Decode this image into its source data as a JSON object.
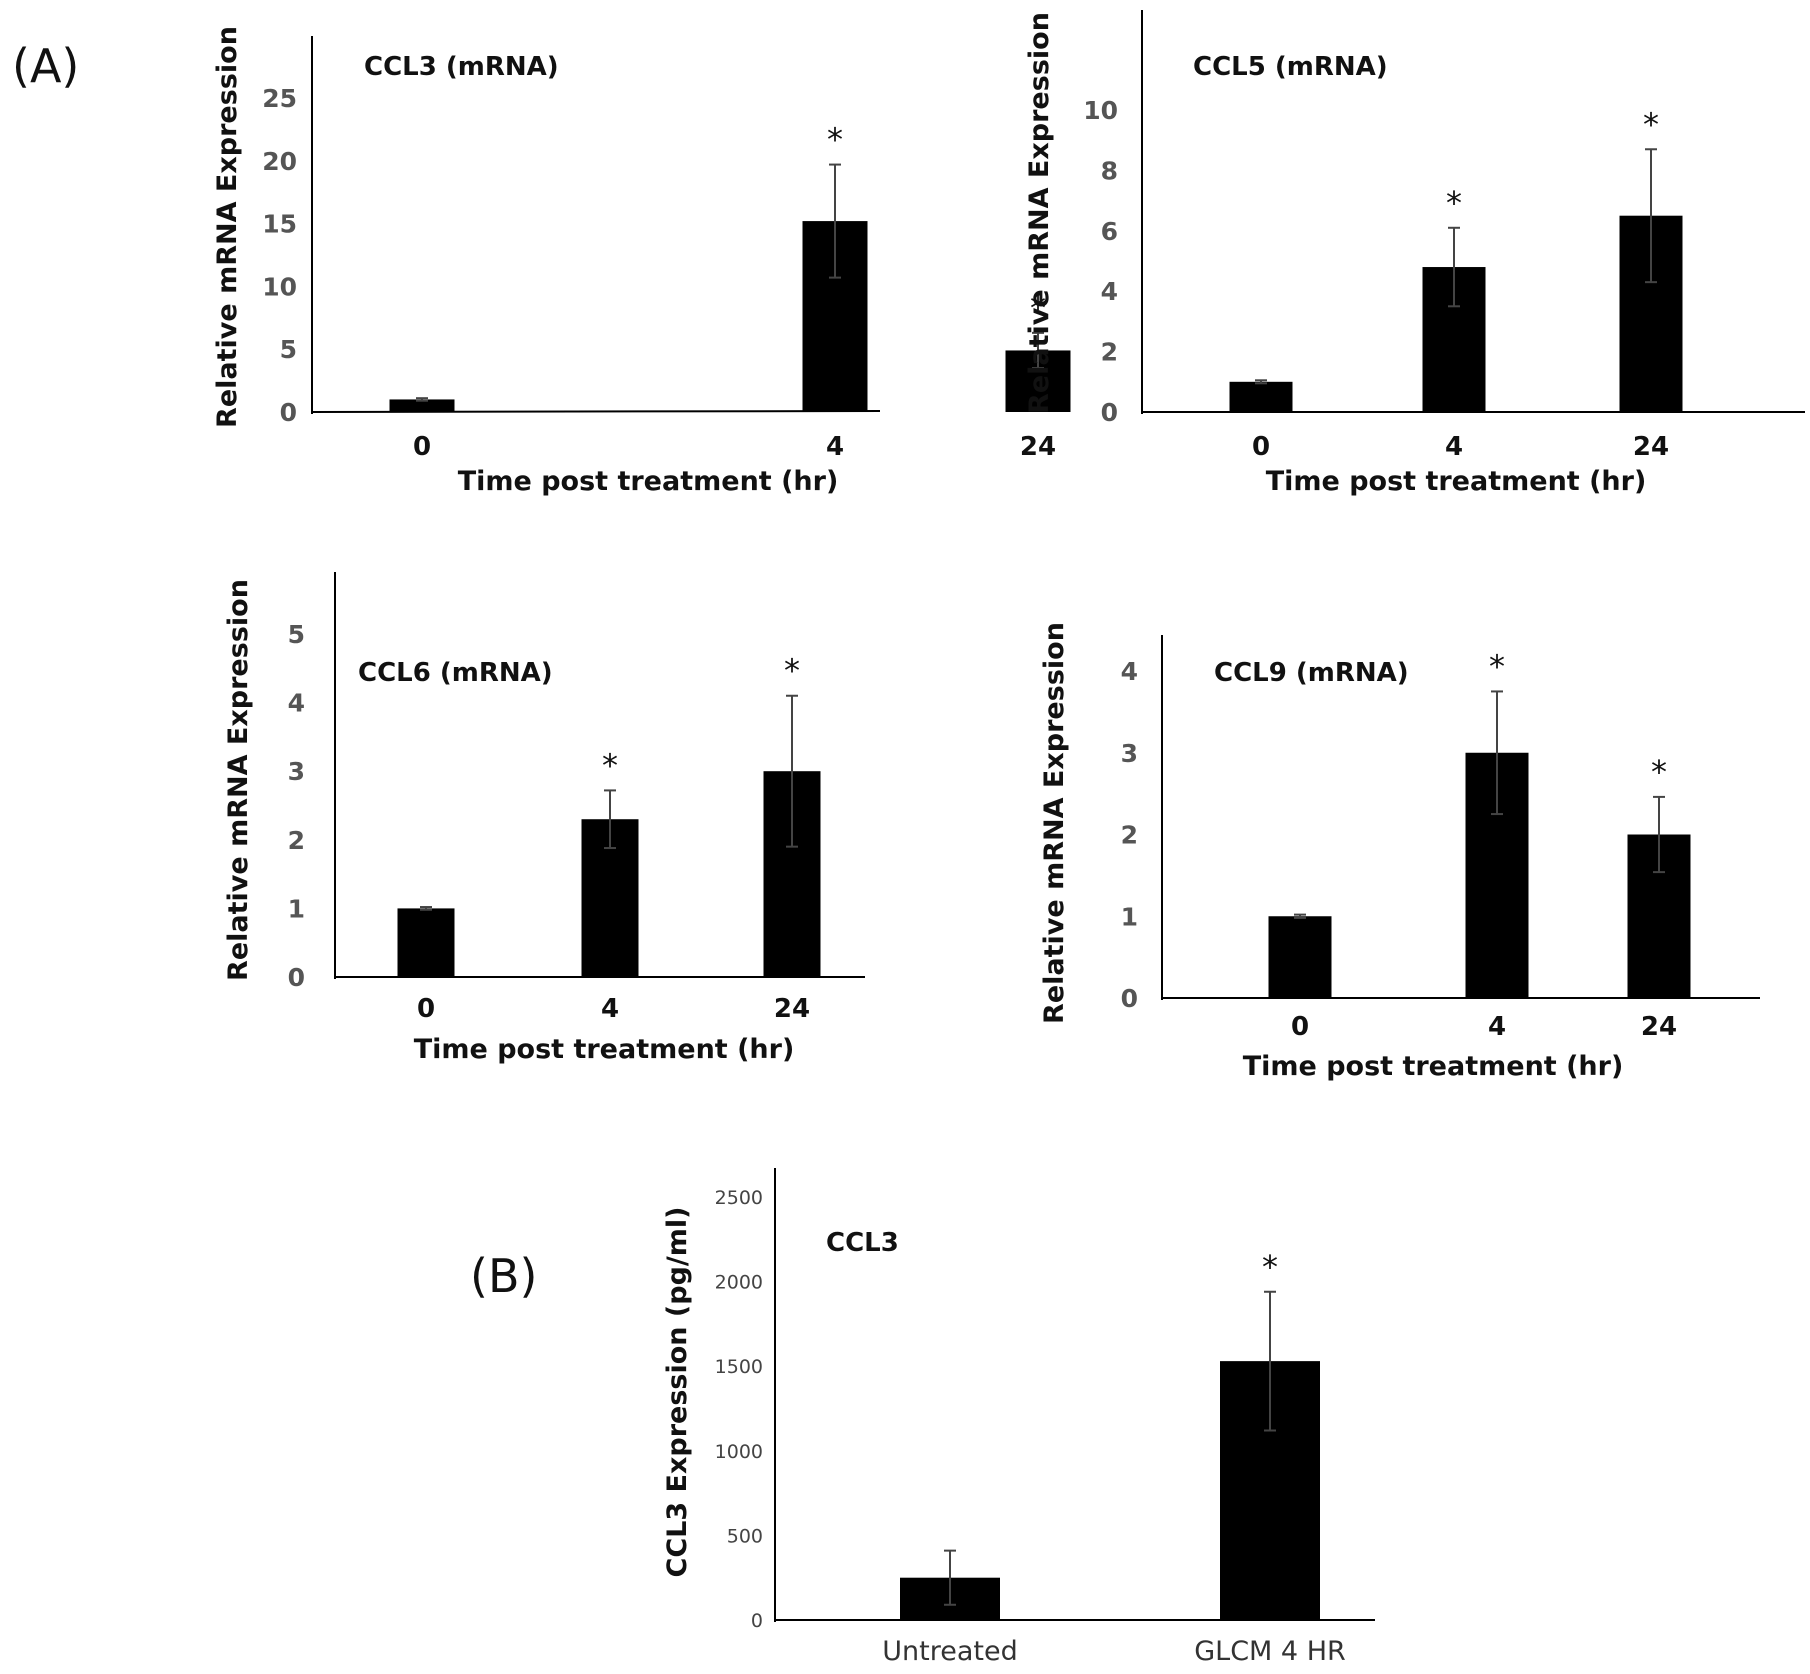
{
  "figure_labels": {
    "panel_a": "(A)",
    "panel_b": "(B)"
  },
  "colors": {
    "bar": "#000000",
    "axis": "#000000",
    "error": "#444444",
    "tick_text": "#555555"
  },
  "chart_data": [
    {
      "id": "ccl3-mrna",
      "type": "bar",
      "title": "CCL3 (mRNA)",
      "xlabel": "Time post treatment (hr)",
      "ylabel": "Relative mRNA Expression",
      "categories": [
        "0",
        "4",
        "24"
      ],
      "values": [
        1,
        15.2,
        4.9
      ],
      "errors": [
        0.1,
        4.5,
        1.4
      ],
      "significant": [
        false,
        true,
        true
      ],
      "significance_marker": "*",
      "yticks": [
        0,
        5,
        10,
        15,
        20,
        25
      ],
      "ytick_labels": [
        "0",
        "5",
        "10",
        "15",
        "20",
        "25"
      ],
      "ylim": [
        0,
        30
      ],
      "grid": false
    },
    {
      "id": "ccl5-mrna",
      "type": "bar",
      "title": "CCL5 (mRNA)",
      "xlabel": "Time post treatment (hr)",
      "ylabel": "Relative mRNA Expression",
      "categories": [
        "0",
        "4",
        "24"
      ],
      "values": [
        1,
        4.8,
        6.5
      ],
      "errors": [
        0.05,
        1.3,
        2.2
      ],
      "significant": [
        false,
        true,
        true
      ],
      "significance_marker": "*",
      "yticks": [
        0,
        2,
        4,
        6,
        8,
        10
      ],
      "ytick_labels": [
        "0",
        "2",
        "4",
        "6",
        "8",
        "10"
      ],
      "ylim": [
        0,
        13
      ],
      "grid": false
    },
    {
      "id": "ccl6-mrna",
      "type": "bar",
      "title": "CCL6 (mRNA)",
      "xlabel": "Time post treatment (hr)",
      "ylabel": "Relative mRNA Expression",
      "categories": [
        "0",
        "4",
        "24"
      ],
      "values": [
        1,
        2.3,
        3.0
      ],
      "errors": [
        0.02,
        0.42,
        1.1
      ],
      "significant": [
        false,
        true,
        true
      ],
      "significance_marker": "*",
      "yticks": [
        0,
        1,
        2,
        3,
        4,
        5
      ],
      "ytick_labels": [
        "0",
        "1",
        "2",
        "3",
        "4",
        "5"
      ],
      "ylim": [
        0,
        5.9
      ],
      "grid": false
    },
    {
      "id": "ccl9-mrna",
      "type": "bar",
      "title": "CCL9 (mRNA)",
      "xlabel": "Time post treatment (hr)",
      "ylabel": "Relative mRNA Expression",
      "categories": [
        "0",
        "4",
        "24"
      ],
      "values": [
        1,
        3.0,
        2.0
      ],
      "errors": [
        0.02,
        0.75,
        0.46
      ],
      "significant": [
        false,
        true,
        true
      ],
      "significance_marker": "*",
      "yticks": [
        0,
        1,
        2,
        3,
        4
      ],
      "ytick_labels": [
        "0",
        "1",
        "2",
        "3",
        "4"
      ],
      "ylim": [
        0,
        4.4
      ],
      "grid": false
    },
    {
      "id": "ccl3-protein",
      "type": "bar",
      "title": "CCL3",
      "xlabel": "",
      "ylabel": "CCL3 Expression (pg/ml)",
      "categories": [
        "Untreated",
        "GLCM 4 HR"
      ],
      "values": [
        250,
        1530
      ],
      "errors": [
        160,
        410
      ],
      "significant": [
        false,
        true
      ],
      "significance_marker": "*",
      "yticks": [
        0,
        500,
        1000,
        1500,
        2000,
        2500
      ],
      "ytick_labels": [
        "0",
        "500",
        "1000",
        "1500",
        "2000",
        "2500"
      ],
      "ylim": [
        0,
        2600
      ],
      "grid": false
    }
  ]
}
